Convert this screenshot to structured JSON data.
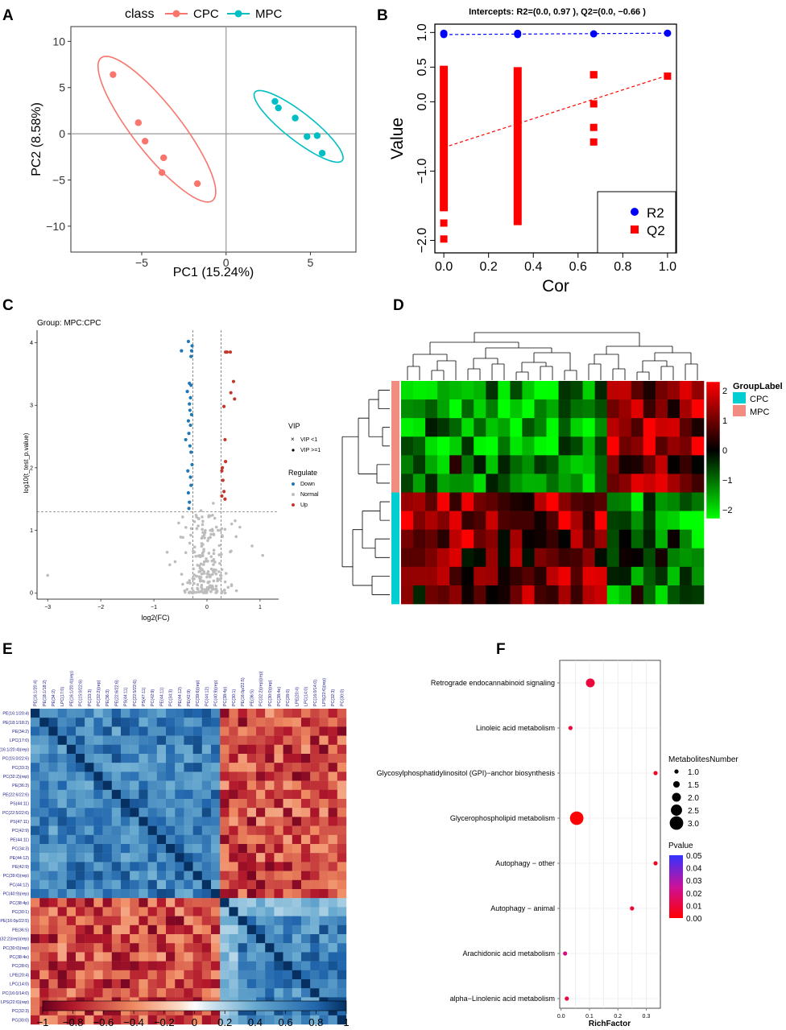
{
  "chart_data": [
    {
      "panel": "A",
      "type": "scatter",
      "legend_title": "class",
      "series": [
        {
          "name": "CPC",
          "color": "#F8766D",
          "points": [
            [
              -6.7,
              6.4
            ],
            [
              -5.2,
              1.2
            ],
            [
              -4.8,
              -0.8
            ],
            [
              -3.7,
              -2.6
            ],
            [
              -3.8,
              -4.2
            ],
            [
              -1.7,
              -5.4
            ]
          ]
        },
        {
          "name": "MPC",
          "color": "#00BFC4",
          "points": [
            [
              2.9,
              3.5
            ],
            [
              3.1,
              2.8
            ],
            [
              4.1,
              1.7
            ],
            [
              4.8,
              -0.3
            ],
            [
              5.4,
              -0.2
            ],
            [
              5.7,
              -2.1
            ]
          ]
        }
      ],
      "ellipses": [
        {
          "series": "CPC",
          "center": [
            -4.1,
            0.5
          ],
          "semi_axes": [
            9.8,
            2.6
          ],
          "angle_deg": -52
        },
        {
          "series": "MPC",
          "center": [
            4.3,
            0.8
          ],
          "semi_axes": [
            6.0,
            1.5
          ],
          "angle_deg": -38
        }
      ],
      "xlabel": "PC1 (15.24%)",
      "ylabel": "PC2 (8.58%)",
      "xticks": [
        "−5",
        "0",
        "5"
      ],
      "yticks": [
        "10",
        "5",
        "0",
        "−5",
        "−10"
      ],
      "xlim": [
        -9.2,
        7.7
      ],
      "ylim": [
        -12.8,
        11.6
      ]
    },
    {
      "panel": "B",
      "type": "scatter",
      "title": "Intercepts: R2=(0.0, 0.97 ), Q2=(0.0, −0.66 )",
      "xlabel": "Cor",
      "ylabel": "Value",
      "xticks": [
        "0.0",
        "0.2",
        "0.4",
        "0.6",
        "0.8",
        "1.0"
      ],
      "yticks": [
        "1.0",
        "0.5",
        "0.0",
        "−1.0",
        "−2.0"
      ],
      "xlim": [
        -0.04,
        1.04
      ],
      "ylim": [
        -2.18,
        1.12
      ],
      "legend": [
        "R2",
        "Q2"
      ],
      "series": [
        {
          "name": "R2",
          "color": "#0000FF",
          "x": [
            0.0,
            0.0,
            0.33,
            0.33,
            0.67,
            1.0
          ],
          "y": [
            0.97,
            0.99,
            0.97,
            0.99,
            0.98,
            0.99
          ]
        },
        {
          "name": "Q2",
          "color": "#FF0000",
          "x": [
            0.0,
            0.0,
            0.67,
            0.67,
            0.67,
            0.67,
            0.67,
            1.0
          ],
          "y": [
            -1.75,
            -1.98,
            0.39,
            -0.03,
            -0.37,
            -0.58,
            0.39,
            0.37
          ]
        }
      ],
      "q2_bands": [
        {
          "x": 0.0,
          "from": -1.58,
          "to": 0.52
        },
        {
          "x": 0.33,
          "from": -1.78,
          "to": 0.5
        }
      ],
      "regressions": [
        {
          "series": "R2",
          "from": [
            0.0,
            0.97
          ],
          "to": [
            1.0,
            0.99
          ]
        },
        {
          "series": "Q2",
          "from": [
            0.0,
            -0.66
          ],
          "to": [
            1.0,
            0.38
          ]
        }
      ]
    },
    {
      "panel": "C",
      "type": "scatter",
      "title": "Group: MPC:CPC",
      "xlabel": "log2(FC)",
      "ylabel": "log10(t_test_p.value)",
      "xticks": [
        "−3",
        "−2",
        "−1",
        "0",
        "1"
      ],
      "yticks": [
        "0",
        "1",
        "2",
        "3",
        "4"
      ],
      "xlim": [
        -3.2,
        1.35
      ],
      "ylim": [
        -0.1,
        4.2
      ],
      "thresholds": {
        "fc_low": -0.263,
        "fc_high": 0.263,
        "p": 1.3
      },
      "legend_vip_title": "VIP",
      "legend_vip": [
        "VIP <1",
        "VIP >=1"
      ],
      "legend_regulate_title": "Regulate",
      "legend_regulate": [
        "Down",
        "Normal",
        "Up"
      ],
      "colors": {
        "Down": "#1F78B4",
        "Normal": "#BDBDBD",
        "Up": "#C0392B"
      },
      "down": [
        [
          -0.35,
          4.02
        ],
        [
          -0.28,
          3.95
        ],
        [
          -0.48,
          3.87
        ],
        [
          -0.29,
          3.87
        ],
        [
          -0.3,
          3.78
        ],
        [
          -0.33,
          3.35
        ],
        [
          -0.3,
          3.32
        ],
        [
          -0.37,
          3.22
        ],
        [
          -0.31,
          3.12
        ],
        [
          -0.33,
          3.02
        ],
        [
          -0.32,
          2.92
        ],
        [
          -0.29,
          2.85
        ],
        [
          -0.35,
          2.75
        ],
        [
          -0.31,
          2.68
        ],
        [
          -0.34,
          2.55
        ],
        [
          -0.4,
          2.45
        ],
        [
          -0.32,
          2.35
        ],
        [
          -0.3,
          2.25
        ],
        [
          -0.28,
          2.05
        ],
        [
          -0.36,
          1.95
        ],
        [
          -0.31,
          1.85
        ],
        [
          -0.3,
          1.72
        ],
        [
          -0.35,
          1.6
        ],
        [
          -0.33,
          1.45
        ],
        [
          -0.34,
          1.35
        ]
      ],
      "up": [
        [
          0.38,
          3.85
        ],
        [
          0.45,
          3.2
        ],
        [
          0.5,
          3.38
        ],
        [
          0.52,
          3.1
        ],
        [
          0.35,
          3.85
        ],
        [
          0.44,
          3.85
        ],
        [
          0.32,
          2.98
        ],
        [
          0.34,
          2.45
        ],
        [
          0.35,
          2.1
        ],
        [
          0.29,
          2.0
        ],
        [
          0.28,
          1.95
        ],
        [
          0.3,
          1.8
        ],
        [
          0.32,
          1.62
        ],
        [
          0.28,
          1.55
        ],
        [
          0.34,
          1.5
        ]
      ],
      "normal": [
        [
          -3.0,
          0.28
        ],
        [
          1.05,
          0.6
        ],
        [
          0.85,
          0.75
        ],
        [
          -0.75,
          0.65
        ],
        [
          -0.6,
          0.5
        ],
        [
          0.62,
          1.05
        ],
        [
          0.55,
          0.9
        ],
        [
          -0.7,
          0.45
        ]
      ],
      "normal_cloud_count": 200
    },
    {
      "panel": "D",
      "type": "heatmap",
      "rows": 12,
      "cols": 25,
      "legend_title": "GroupLabel",
      "groups": [
        {
          "name": "CPC",
          "color": "#00CED1"
        },
        {
          "name": "MPC",
          "color": "#F08C80"
        }
      ],
      "row_groups": [
        "MPC",
        "MPC",
        "MPC",
        "MPC",
        "MPC",
        "MPC",
        "CPC",
        "CPC",
        "CPC",
        "CPC",
        "CPC",
        "CPC"
      ],
      "colorbar_ticks": [
        "2",
        "1",
        "0",
        "−1",
        "−2"
      ],
      "colorbar_range": [
        -2.3,
        2.3
      ]
    },
    {
      "panel": "E",
      "type": "heatmap",
      "labels": [
        "PE(16:1/20:4)",
        "PE(18:1/18:2)",
        "PE(34:2)",
        "LPC(17:0)",
        "PE(16:1/20:4)(rep)",
        "PC(15:0/22:6)",
        "PC(33:3)",
        "PC(32:2)(rep)",
        "PE(36:3)",
        "PE(22:6/22:6)",
        "PS(44:11)",
        "PC(22:5/22:6)",
        "PS(47:11)",
        "PC(42:9)",
        "PE(44:11)",
        "PC(34:3)",
        "PE(44:12)",
        "PE(42:9)",
        "PC(39:6)(rep)",
        "PC(44:12)",
        "PC(40:9)(rep)",
        "PC(38:4p)",
        "PC(30:1)",
        "PE(16:0p/22:5)",
        "PE(36:5)",
        "PC(32:2)(rep)(rep)",
        "PC(30:0)(rep)",
        "PC(38:4e)",
        "PC(28:0)",
        "LPE(20:4)",
        "LPC(14:0)",
        "PC(16:0/14:0)",
        "LPS(22:6)(rep)",
        "PC(32:3)",
        "PC(30:0)"
      ],
      "group_sizes": [
        21,
        14
      ],
      "colorbar_ticks": [
        "−1",
        "−0.8",
        "−0.6",
        "−0.4",
        "−0.2",
        "0",
        "0.2",
        "0.4",
        "0.6",
        "0.8",
        "1"
      ]
    },
    {
      "panel": "F",
      "type": "scatter",
      "xlabel": "RichFactor",
      "xticks": [
        "0.0",
        "0.1",
        "0.2",
        "0.3"
      ],
      "xlim": [
        -0.005,
        0.35
      ],
      "pathways": [
        {
          "name": "Retrograde endocannabinoid signaling",
          "rich": 0.103,
          "number": 2,
          "pvalue": 0.01
        },
        {
          "name": "Linoleic acid metabolism",
          "rich": 0.033,
          "number": 1,
          "pvalue": 0.01
        },
        {
          "name": "Glycosylphosphatidylinositol (GPI)−anchor biosynthesis",
          "rich": 0.333,
          "number": 1,
          "pvalue": 0.005
        },
        {
          "name": "Glycerophospholipid metabolism",
          "rich": 0.055,
          "number": 3,
          "pvalue": 0.001
        },
        {
          "name": "Autophagy − other",
          "rich": 0.333,
          "number": 1,
          "pvalue": 0.005
        },
        {
          "name": "Autophagy − animal",
          "rich": 0.25,
          "number": 1,
          "pvalue": 0.008
        },
        {
          "name": "Arachidonic acid metabolism",
          "rich": 0.014,
          "number": 1,
          "pvalue": 0.02
        },
        {
          "name": "alpha−Linolenic acid metabolism",
          "rich": 0.02,
          "number": 1,
          "pvalue": 0.01
        }
      ],
      "size_legend_title": "MetabolitesNumber",
      "size_legend": [
        "1.0",
        "1.5",
        "2.0",
        "2.5",
        "3.0"
      ],
      "color_legend_title": "Pvalue",
      "color_legend": [
        "0.05",
        "0.04",
        "0.03",
        "0.02",
        "0.01",
        "0.00"
      ]
    }
  ],
  "panel_letters": [
    "A",
    "B",
    "C",
    "D",
    "E",
    "F"
  ]
}
